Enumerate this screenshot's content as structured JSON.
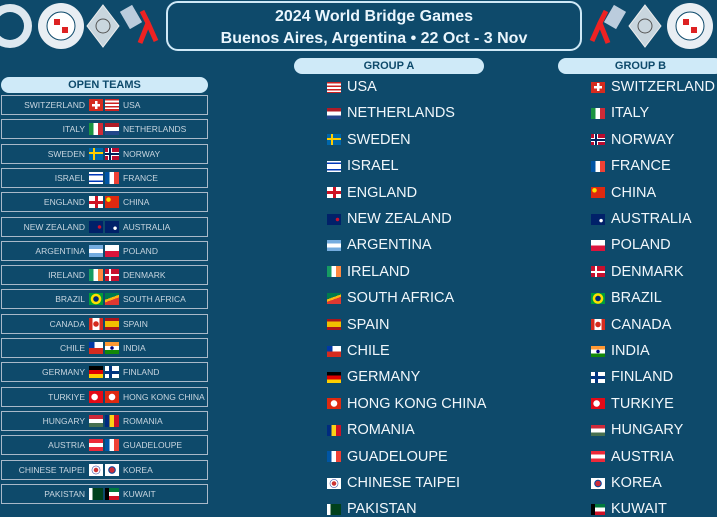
{
  "header": {
    "title": "2024 World Bridge Games",
    "subtitle": "Buenos Aires, Argentina • 22 Oct - 3 Nov",
    "logos": [
      "bridge-net-logo",
      "world-bridge-federation-logo",
      "diamond-logo",
      "tango-cards-logo"
    ]
  },
  "open_teams": {
    "title": "OPEN TEAMS",
    "matches": [
      {
        "home": "SWITZERLAND",
        "away": "USA"
      },
      {
        "home": "ITALY",
        "away": "NETHERLANDS"
      },
      {
        "home": "SWEDEN",
        "away": "NORWAY"
      },
      {
        "home": "ISRAEL",
        "away": "FRANCE"
      },
      {
        "home": "ENGLAND",
        "away": "CHINA"
      },
      {
        "home": "NEW ZEALAND",
        "away": "AUSTRALIA"
      },
      {
        "home": "ARGENTINA",
        "away": "POLAND"
      },
      {
        "home": "IRELAND",
        "away": "DENMARK"
      },
      {
        "home": "BRAZIL",
        "away": "SOUTH AFRICA"
      },
      {
        "home": "CANADA",
        "away": "SPAIN"
      },
      {
        "home": "CHILE",
        "away": "INDIA"
      },
      {
        "home": "GERMANY",
        "away": "FINLAND"
      },
      {
        "home": "TURKIYE",
        "away": "HONG KONG CHINA"
      },
      {
        "home": "HUNGARY",
        "away": "ROMANIA"
      },
      {
        "home": "AUSTRIA",
        "away": "GUADELOUPE"
      },
      {
        "home": "CHINESE TAIPEI",
        "away": "KOREA"
      },
      {
        "home": "PAKISTAN",
        "away": "KUWAIT"
      }
    ]
  },
  "group_a": {
    "title": "GROUP A",
    "teams": [
      "USA",
      "NETHERLANDS",
      "SWEDEN",
      "ISRAEL",
      "ENGLAND",
      "NEW ZEALAND",
      "ARGENTINA",
      "IRELAND",
      "SOUTH AFRICA",
      "SPAIN",
      "CHILE",
      "GERMANY",
      "HONG KONG CHINA",
      "ROMANIA",
      "GUADELOUPE",
      "CHINESE TAIPEI",
      "PAKISTAN"
    ]
  },
  "group_b": {
    "title": "GROUP B",
    "teams": [
      "SWITZERLAND",
      "ITALY",
      "NORWAY",
      "FRANCE",
      "CHINA",
      "AUSTRALIA",
      "POLAND",
      "DENMARK",
      "BRAZIL",
      "CANADA",
      "INDIA",
      "FINLAND",
      "TURKIYE",
      "HUNGARY",
      "AUSTRIA",
      "KOREA",
      "KUWAIT"
    ]
  },
  "colors": {
    "background": "#0e4a6b",
    "header_pill": "#cfeaf8"
  }
}
